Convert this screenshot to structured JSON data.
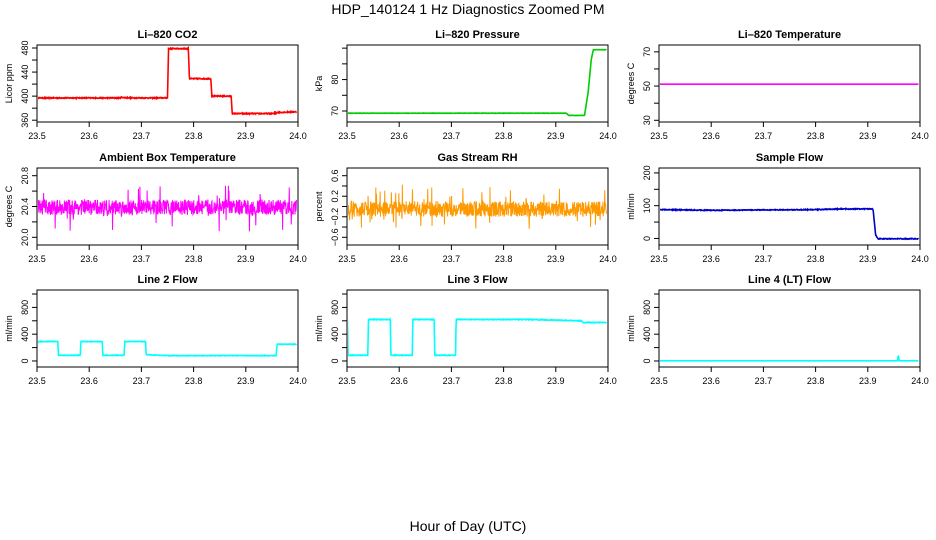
{
  "page": {
    "title": "HDP_140124  1 Hz Diagnostics Zoomed PM",
    "xlabel": "Hour of Day (UTC)"
  },
  "chart_data": [
    {
      "type": "line",
      "title": "Li–820 CO2",
      "ylabel": "Licor ppm",
      "color": "#ff0000",
      "xlim": [
        23.5,
        24.0
      ],
      "ylim": [
        357,
        485
      ],
      "yticks": [
        360,
        380,
        400,
        420,
        440,
        460,
        480
      ],
      "ytick_labels": [
        "360",
        "",
        "400",
        "",
        "440",
        "",
        "480"
      ],
      "xticks": [
        23.5,
        23.6,
        23.7,
        23.8,
        23.9,
        24.0
      ],
      "noise": 0.8,
      "x": [
        23.5,
        23.66,
        23.66,
        23.68,
        23.75,
        23.752,
        23.79,
        23.792,
        23.833,
        23.835,
        23.872,
        23.874,
        23.955,
        23.956,
        23.957,
        23.96,
        23.965,
        23.997
      ],
      "y": [
        397,
        397,
        398,
        397,
        397,
        479,
        479,
        429,
        429,
        400,
        400,
        371,
        371,
        376,
        370,
        373,
        373,
        374
      ]
    },
    {
      "type": "line",
      "title": "Li–820 Pressure",
      "ylabel": "kPa",
      "color": "#00cc00",
      "xlim": [
        23.5,
        24.0
      ],
      "ylim": [
        66.5,
        91
      ],
      "yticks": [
        70,
        75,
        80,
        85,
        90
      ],
      "ytick_labels": [
        "70",
        "",
        "80",
        "",
        ""
      ],
      "xticks": [
        23.5,
        23.6,
        23.7,
        23.8,
        23.9,
        24.0
      ],
      "noise": 0.05,
      "x": [
        23.5,
        23.92,
        23.925,
        23.955,
        23.962,
        23.968,
        23.972,
        23.997
      ],
      "y": [
        69.3,
        69.3,
        68.6,
        68.6,
        76,
        86.5,
        89.5,
        89.5
      ]
    },
    {
      "type": "line",
      "title": "Li–820 Temperature",
      "ylabel": "degrees C",
      "color": "#ff00ff",
      "xlim": [
        23.5,
        24.0
      ],
      "ylim": [
        29,
        74
      ],
      "yticks": [
        30,
        40,
        50,
        60,
        70
      ],
      "ytick_labels": [
        "30",
        "",
        "50",
        "",
        "70"
      ],
      "xticks": [
        23.5,
        23.6,
        23.7,
        23.8,
        23.9,
        24.0
      ],
      "noise": 0,
      "x": [
        23.5,
        23.997
      ],
      "y": [
        51.1,
        51.1
      ]
    },
    {
      "type": "line",
      "title": "Ambient Box Temperature",
      "ylabel": "degrees C",
      "color": "#ff00ff",
      "xlim": [
        23.5,
        24.0
      ],
      "ylim": [
        19.9,
        20.9
      ],
      "yticks": [
        20.0,
        20.2,
        20.4,
        20.6,
        20.8
      ],
      "ytick_labels": [
        "20.0",
        "",
        "20.4",
        "",
        "20.8"
      ],
      "xticks": [
        23.5,
        23.6,
        23.7,
        23.8,
        23.9,
        24.0
      ],
      "noise": 0.1,
      "band": true,
      "x": [
        23.5,
        23.997
      ],
      "y": [
        20.39,
        20.39
      ]
    },
    {
      "type": "line",
      "title": "Gas Stream RH",
      "ylabel": "percent",
      "color": "#ff9900",
      "xlim": [
        23.5,
        24.0
      ],
      "ylim": [
        -0.75,
        0.75
      ],
      "yticks": [
        -0.6,
        -0.4,
        -0.2,
        0.0,
        0.2,
        0.4,
        0.6
      ],
      "ytick_labels": [
        "−0.6",
        "",
        "−0.2",
        "",
        "0.2",
        "",
        "0.6"
      ],
      "xticks": [
        23.5,
        23.6,
        23.7,
        23.8,
        23.9,
        24.0
      ],
      "noise": 0.15,
      "band": true,
      "x": [
        23.5,
        23.997
      ],
      "y": [
        -0.05,
        -0.05
      ]
    },
    {
      "type": "line",
      "title": "Sample Flow",
      "ylabel": "ml/min",
      "color": "#0000cc",
      "xlim": [
        23.5,
        24.0
      ],
      "ylim": [
        -20,
        215
      ],
      "yticks": [
        0,
        50,
        100,
        150,
        200
      ],
      "ytick_labels": [
        "0",
        "",
        "100",
        "",
        "200"
      ],
      "xticks": [
        23.5,
        23.6,
        23.7,
        23.8,
        23.9,
        24.0
      ],
      "noise": 1.2,
      "x": [
        23.5,
        23.6,
        23.7,
        23.8,
        23.85,
        23.91,
        23.915,
        23.92,
        23.997
      ],
      "y": [
        88,
        86,
        87,
        88,
        90,
        90,
        10,
        -1,
        -1
      ]
    },
    {
      "type": "line",
      "title": "Line 2 Flow",
      "ylabel": "ml/min",
      "color": "#00ffff",
      "xlim": [
        23.5,
        24.0
      ],
      "ylim": [
        -90,
        1060
      ],
      "yticks": [
        0,
        200,
        400,
        600,
        800,
        1000
      ],
      "ytick_labels": [
        "0",
        "",
        "400",
        "",
        "800",
        ""
      ],
      "xticks": [
        23.5,
        23.6,
        23.7,
        23.8,
        23.9,
        24.0
      ],
      "noise": 4,
      "x": [
        23.5,
        23.501,
        23.54,
        23.541,
        23.583,
        23.584,
        23.625,
        23.626,
        23.667,
        23.668,
        23.708,
        23.709,
        23.75,
        23.958,
        23.96,
        23.997
      ],
      "y": [
        100,
        290,
        290,
        85,
        85,
        290,
        290,
        85,
        85,
        290,
        290,
        95,
        80,
        80,
        250,
        250
      ]
    },
    {
      "type": "line",
      "title": "Line 3 Flow",
      "ylabel": "ml/min",
      "color": "#00ffff",
      "xlim": [
        23.5,
        24.0
      ],
      "ylim": [
        -90,
        1060
      ],
      "yticks": [
        0,
        200,
        400,
        600,
        800,
        1000
      ],
      "ytick_labels": [
        "0",
        "",
        "400",
        "",
        "800",
        ""
      ],
      "xticks": [
        23.5,
        23.6,
        23.7,
        23.8,
        23.9,
        24.0
      ],
      "noise": 5,
      "x": [
        23.5,
        23.501,
        23.502,
        23.54,
        23.541,
        23.583,
        23.584,
        23.625,
        23.626,
        23.667,
        23.668,
        23.708,
        23.709,
        23.85,
        23.95,
        23.952,
        23.997
      ],
      "y": [
        620,
        620,
        85,
        85,
        620,
        620,
        85,
        85,
        620,
        620,
        85,
        85,
        620,
        620,
        600,
        575,
        575
      ]
    },
    {
      "type": "line",
      "title": "Line 4 (LT) Flow",
      "ylabel": "ml/min",
      "color": "#00ffff",
      "xlim": [
        23.5,
        24.0
      ],
      "ylim": [
        -90,
        1060
      ],
      "yticks": [
        0,
        200,
        400,
        600,
        800,
        1000
      ],
      "ytick_labels": [
        "0",
        "",
        "400",
        "",
        "800",
        ""
      ],
      "xticks": [
        23.5,
        23.6,
        23.7,
        23.8,
        23.9,
        24.0
      ],
      "noise": 0,
      "x": [
        23.5,
        23.957,
        23.958,
        23.959,
        23.96,
        23.997
      ],
      "y": [
        2,
        2,
        70,
        70,
        2,
        2
      ]
    }
  ]
}
